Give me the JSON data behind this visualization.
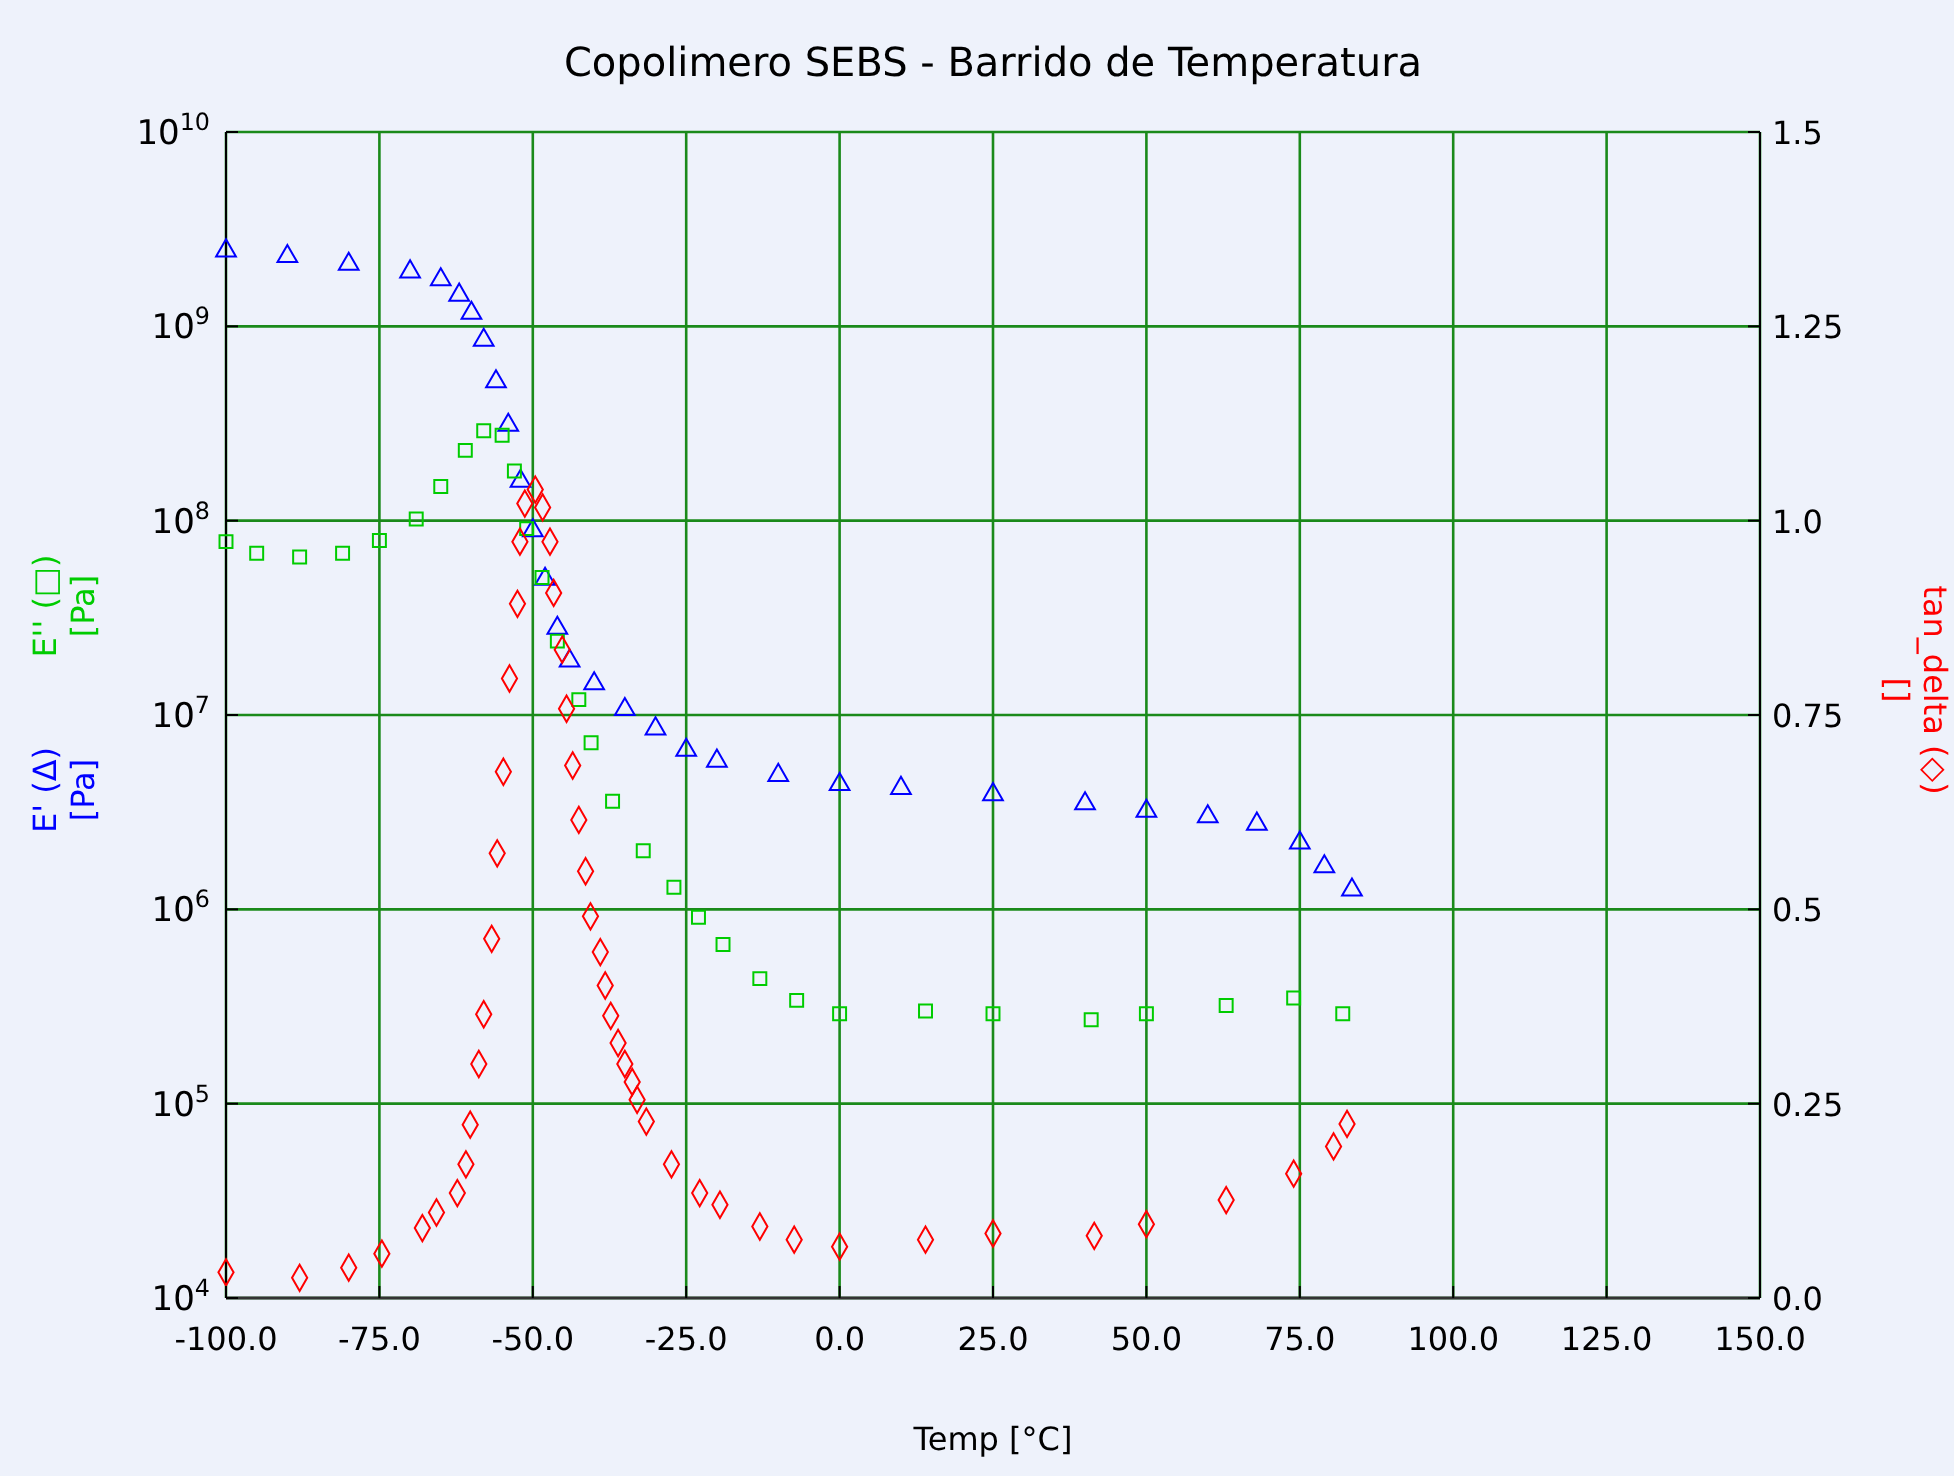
{
  "chart_data": {
    "type": "scatter",
    "title": "Copolimero SEBS - Barrido de Temperatura",
    "xlabel": "Temp [°C]",
    "xlim": [
      -100,
      150
    ],
    "xticks": [
      {
        "value": -100,
        "label": "-100.0"
      },
      {
        "value": -75,
        "label": "-75.0"
      },
      {
        "value": -50,
        "label": "-50.0"
      },
      {
        "value": -25,
        "label": "-25.0"
      },
      {
        "value": 0,
        "label": "0.0"
      },
      {
        "value": 25,
        "label": "25.0"
      },
      {
        "value": 50,
        "label": "50.0"
      },
      {
        "value": 75,
        "label": "75.0"
      },
      {
        "value": 100,
        "label": "100.0"
      },
      {
        "value": 125,
        "label": "125.0"
      },
      {
        "value": 150,
        "label": "150.0"
      }
    ],
    "log": "y",
    "ylim": [
      10000,
      10000000000
    ],
    "yticks": [
      {
        "value": 10000,
        "label": "10$^{4}$"
      },
      {
        "value": 100000,
        "label": "10$^{5}$"
      },
      {
        "value": 1000000,
        "label": "10$^{6}$"
      },
      {
        "value": 10000000,
        "label": "10$^{7}$"
      },
      {
        "value": 100000000,
        "label": "10$^{8}$"
      },
      {
        "value": 1000000000,
        "label": "10$^{9}$"
      },
      {
        "value": 10000000000,
        "label": "10$^{10}$"
      }
    ],
    "y2lim": [
      0,
      1.5
    ],
    "y2ticks": [
      {
        "value": 0,
        "label": "0.0"
      },
      0.25,
      0.5,
      0.75,
      {
        "value": 1,
        "label": "1.0"
      },
      1.25,
      1.5
    ],
    "grid": true,
    "series": [
      {
        "name": "E' (Δ) [Pa]",
        "color": "#0000ff",
        "marker": "triangle",
        "x": [
          -100,
          -90,
          -80,
          -70,
          -65,
          -62,
          -60,
          -58,
          -56,
          -54,
          -52,
          -50,
          -48,
          -46,
          -44,
          -40,
          -35,
          -30,
          -25,
          -20,
          -10,
          0,
          10,
          25,
          40,
          50,
          60,
          68,
          75,
          79,
          83.5
        ],
        "values": [
          2450000000,
          2290000000,
          2090000000,
          1910000000,
          1740000000,
          1450000000,
          1170000000,
          850000000,
          520000000,
          310000000,
          160000000,
          89000000,
          50000000,
          28000000,
          19000000,
          14500000,
          10700000,
          8500000,
          6600000,
          5800000,
          4900000,
          4400000,
          4200000,
          3900000,
          3500000,
          3200000,
          3000000,
          2750000,
          2200000,
          1660000,
          1260000
        ]
      },
      {
        "name": "E'' (□) [Pa]",
        "color": "#00cc00",
        "marker": "square",
        "x": [
          -100,
          -95,
          -88,
          -81,
          -75,
          -69,
          -65,
          -61,
          -58,
          -55,
          -53,
          -51,
          -48.5,
          -46,
          -42.5,
          -40.5,
          -37,
          -32,
          -27,
          -23,
          -19,
          -13,
          -7,
          0,
          14,
          25,
          41,
          50,
          63,
          74,
          82
        ],
        "values": [
          78000000,
          68000000,
          65000000,
          68000000,
          79000000,
          102000000,
          150000000,
          230000000,
          290000000,
          275000000,
          180000000,
          91000000,
          51000000,
          24000000,
          12000000,
          7200000,
          3600000,
          2000000,
          1300000,
          910000,
          660000,
          440000,
          340000,
          290000,
          300000,
          290000,
          270000,
          290000,
          320000,
          350000,
          290000
        ]
      },
      {
        "name": "tan_delta (◇) []",
        "color": "#ff0000",
        "marker": "diamond",
        "axis": "y2",
        "x": [
          -100,
          -88,
          -80,
          -74.6,
          -68,
          -65.7,
          -62.3,
          -60.9,
          -60.2,
          -58.8,
          -58,
          -56.7,
          -55.8,
          -54.8,
          -53.8,
          -52.5,
          -52.1,
          -51.3,
          -49.6,
          -48.4,
          -47.2,
          -46.6,
          -45.2,
          -44.5,
          -43.5,
          -42.5,
          -41.4,
          -40.6,
          -39,
          -38.2,
          -37.3,
          -36.1,
          -35,
          -33.8,
          -33,
          -31.5,
          -27.4,
          -22.8,
          -19.5,
          -13,
          -7.4,
          0,
          14,
          25,
          41.5,
          50,
          63,
          74,
          80.5,
          82.7
        ],
        "values": [
          0.033,
          0.026,
          0.039,
          0.057,
          0.09,
          0.11,
          0.135,
          0.172,
          0.223,
          0.301,
          0.365,
          0.462,
          0.572,
          0.677,
          0.797,
          0.893,
          0.973,
          1.022,
          1.04,
          1.017,
          0.973,
          0.907,
          0.834,
          0.758,
          0.685,
          0.615,
          0.549,
          0.491,
          0.445,
          0.402,
          0.363,
          0.328,
          0.301,
          0.278,
          0.255,
          0.227,
          0.172,
          0.135,
          0.12,
          0.092,
          0.075,
          0.066,
          0.075,
          0.083,
          0.08,
          0.095,
          0.126,
          0.16,
          0.195,
          0.224
        ]
      }
    ]
  }
}
